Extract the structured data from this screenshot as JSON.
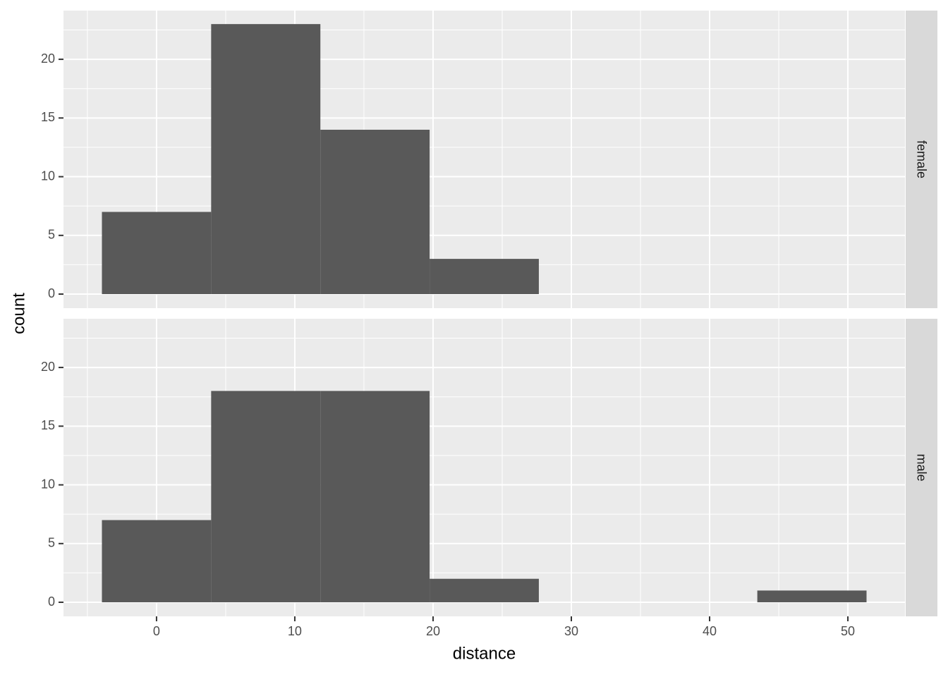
{
  "chart_data": [
    {
      "type": "histogram",
      "facet": "female",
      "ylabel": "count",
      "bins": [
        -3.95,
        3.95,
        11.85,
        19.75,
        27.65,
        35.55,
        43.45,
        51.35
      ],
      "values": [
        7,
        23,
        14,
        3,
        0,
        0,
        0
      ],
      "color": "#595959",
      "xlim": [
        -6.73,
        54.13
      ],
      "ylim": [
        -1.2,
        24.15
      ],
      "xticks": [
        0,
        10,
        20,
        30,
        40,
        50
      ],
      "yticks": [
        0,
        5,
        10,
        15,
        20
      ],
      "grid": true
    },
    {
      "type": "histogram",
      "facet": "male",
      "xlabel": "distance",
      "bins": [
        -3.95,
        3.95,
        11.85,
        19.75,
        27.65,
        35.55,
        43.45,
        51.35
      ],
      "values": [
        7,
        18,
        18,
        2,
        0,
        0,
        1
      ],
      "color": "#595959",
      "xlim": [
        -6.73,
        54.13
      ],
      "ylim": [
        -1.2,
        24.15
      ],
      "xticks": [
        0,
        10,
        20,
        30,
        40,
        50
      ],
      "yticks": [
        0,
        5,
        10,
        15,
        20
      ],
      "grid": true
    }
  ]
}
